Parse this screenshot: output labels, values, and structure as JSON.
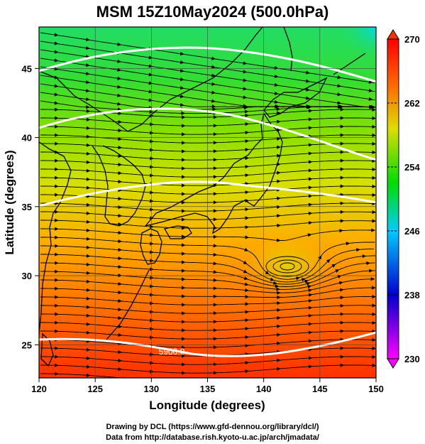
{
  "title": "MSM 15Z10May2024 (500.0hPa)",
  "map": {
    "xlabel": "Longitude (degrees)",
    "ylabel": "Latitude  (degrees)",
    "lon_range": [
      120,
      150
    ],
    "lat_range": [
      22.6,
      48
    ],
    "lon_ticks": [
      "120",
      "125",
      "130",
      "135",
      "140",
      "145",
      "150"
    ],
    "lat_ticks": [
      "25",
      "30",
      "35",
      "40",
      "45"
    ],
    "contours": [
      {
        "label": "5900.0",
        "color": "#ffffff"
      }
    ]
  },
  "colorbar": {
    "range": [
      230,
      270
    ],
    "ticks": [
      "230",
      "238",
      "246",
      "254",
      "262",
      "270"
    ],
    "colors": [
      "#ff00ff",
      "#0000cc",
      "#00ccff",
      "#00dd00",
      "#dddd00",
      "#ff6600",
      "#ff0000"
    ]
  },
  "credits": {
    "line1": "Drawing by DCL (https://www.gfd-dennou.org/library/dcl/)",
    "line2": "Data from http://database.rish.kyoto-u.ac.jp/arch/jmadata/"
  }
}
